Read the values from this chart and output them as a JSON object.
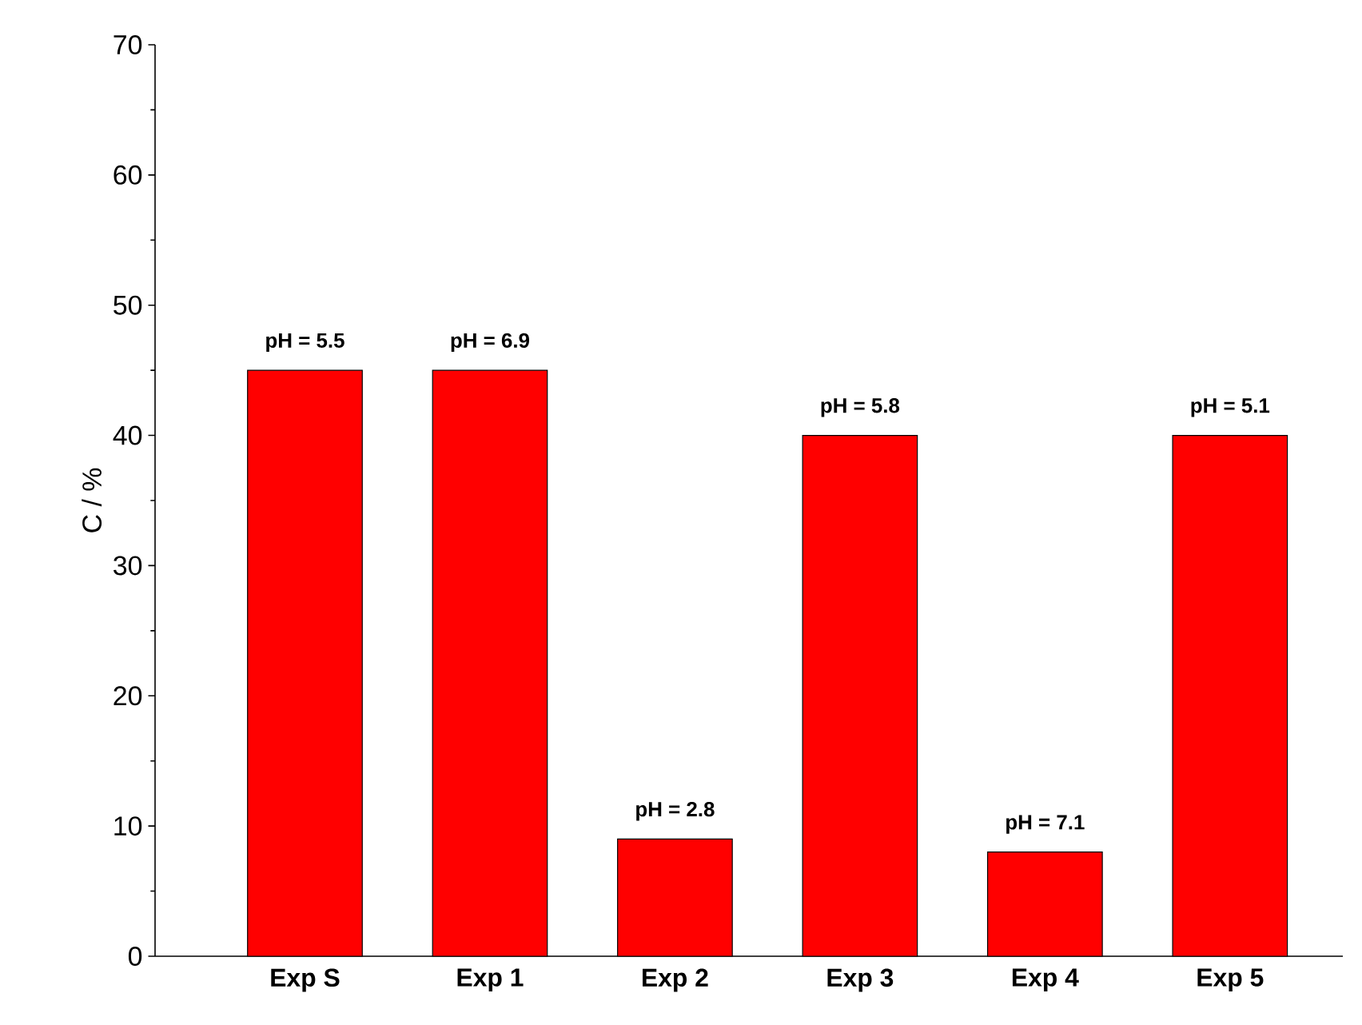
{
  "chart_data": {
    "type": "bar",
    "ylabel": "C / %",
    "categories": [
      "Exp S",
      "Exp 1",
      "Exp 2",
      "Exp 3",
      "Exp 4",
      "Exp 5"
    ],
    "values": [
      45,
      45,
      9,
      40,
      8,
      40
    ],
    "annotations": [
      {
        "text": "pH = 5.5",
        "x": "Exp S",
        "y": 45
      },
      {
        "text": "pH = 6.9",
        "x": "Exp 1",
        "y": 45
      },
      {
        "text": "pH = 2.8",
        "x": "Exp 2",
        "y": 9
      },
      {
        "text": "pH = 5.8",
        "x": "Exp 3",
        "y": 40
      },
      {
        "text": "pH = 7.1",
        "x": "Exp 4",
        "y": 8
      },
      {
        "text": "pH = 5.1",
        "x": "Exp 5",
        "y": 40
      }
    ],
    "color": "#ff0000",
    "ylim": [
      0,
      70
    ],
    "yticks": [
      0,
      10,
      20,
      30,
      40,
      50,
      60,
      70
    ],
    "grid": false
  }
}
